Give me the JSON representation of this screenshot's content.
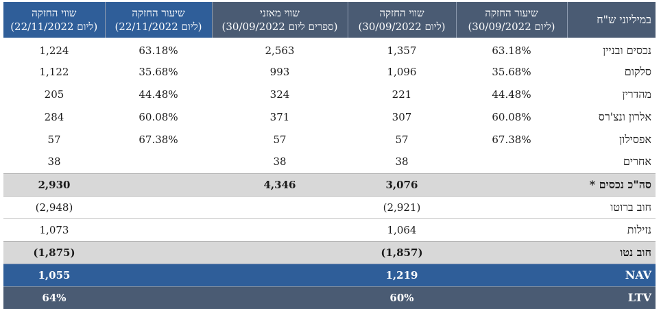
{
  "header": {
    "label": "במיליוני ש\"ח",
    "rate_0930": {
      "line1": "שיעור החזקה",
      "line2": "(ליום 30/09/2022)"
    },
    "value_0930": {
      "line1": "שווי החזקה",
      "line2": "(ליום 30/09/2022)"
    },
    "book_0930": {
      "line1": "שווי מאזני",
      "line2": "(ספרים ליום 30/09/2022)"
    },
    "rate_1122": {
      "line1": "שיעור החזקה",
      "line2": "(ליום 22/11/2022)"
    },
    "value_1122": {
      "line1": "שווי החזקה",
      "line2": "(ליום 22/11/2022)"
    }
  },
  "rows": [
    {
      "label": "נכסים ובניין",
      "rate_0930": "63.18%",
      "value_0930": "1,357",
      "book_0930": "2,563",
      "rate_1122": "63.18%",
      "value_1122": "1,224"
    },
    {
      "label": "סלקום",
      "rate_0930": "35.68%",
      "value_0930": "1,096",
      "book_0930": "993",
      "rate_1122": "35.68%",
      "value_1122": "1,122"
    },
    {
      "label": "מהדרין",
      "rate_0930": "44.48%",
      "value_0930": "221",
      "book_0930": "324",
      "rate_1122": "44.48%",
      "value_1122": "205"
    },
    {
      "label": "אלרון ונצ'רס",
      "rate_0930": "60.08%",
      "value_0930": "307",
      "book_0930": "371",
      "rate_1122": "60.08%",
      "value_1122": "284"
    },
    {
      "label": "אפסילון",
      "rate_0930": "67.38%",
      "value_0930": "57",
      "book_0930": "57",
      "rate_1122": "67.38%",
      "value_1122": "57"
    },
    {
      "label": "אחרים",
      "rate_0930": "",
      "value_0930": "38",
      "book_0930": "38",
      "rate_1122": "",
      "value_1122": "38"
    },
    {
      "label": "סה\"כ נכסים *",
      "rate_0930": "",
      "value_0930": "3,076",
      "book_0930": "4,346",
      "rate_1122": "",
      "value_1122": "2,930"
    },
    {
      "label": "חוב ברוטו",
      "rate_0930": "",
      "value_0930": "(2,921)",
      "book_0930": "",
      "rate_1122": "",
      "value_1122": "(2,948)"
    },
    {
      "label": "נזילות",
      "rate_0930": "",
      "value_0930": "1,064",
      "book_0930": "",
      "rate_1122": "",
      "value_1122": "1,073"
    },
    {
      "label": "חוב נטו",
      "rate_0930": "",
      "value_0930": "(1,857)",
      "book_0930": "",
      "rate_1122": "",
      "value_1122": "(1,875)"
    },
    {
      "label": "NAV",
      "rate_0930": "",
      "value_0930": "1,219",
      "book_0930": "",
      "rate_1122": "",
      "value_1122": "1,055"
    },
    {
      "label": "LTV",
      "rate_0930": "",
      "value_0930": "60%",
      "book_0930": "",
      "rate_1122": "",
      "value_1122": "64%"
    }
  ],
  "colors": {
    "header_dark": "#4a5b73",
    "header_highlight": "#2f5e99",
    "total_row": "#d8d8d8",
    "nav_row": "#2f5e99",
    "ltv_row": "#4a5b73"
  }
}
